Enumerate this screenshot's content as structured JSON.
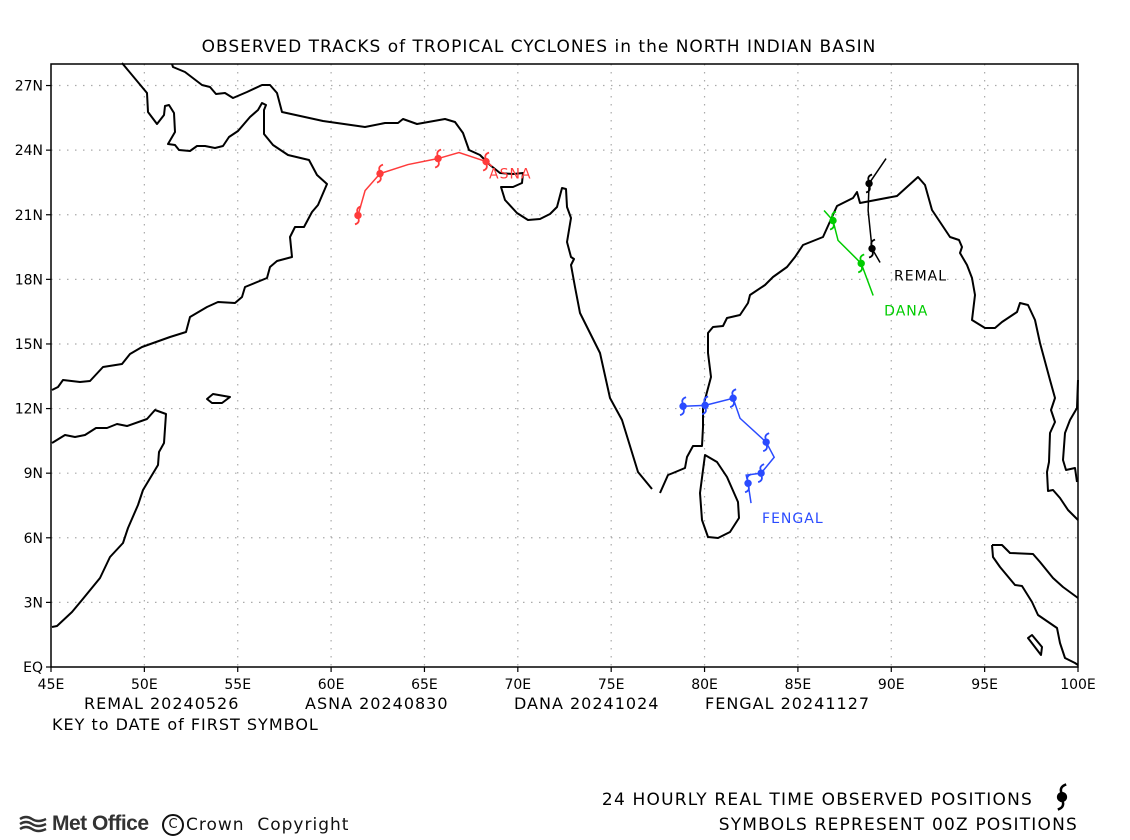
{
  "title": "OBSERVED TRACKS of TROPICAL CYCLONES in the NORTH INDIAN BASIN",
  "chart_data": {
    "type": "map-tracks",
    "lon_range": [
      45,
      100
    ],
    "lat_range": [
      0,
      28
    ],
    "lon_ticks": [
      "45E",
      "50E",
      "55E",
      "60E",
      "65E",
      "70E",
      "75E",
      "80E",
      "85E",
      "90E",
      "95E",
      "100E"
    ],
    "lat_ticks": [
      "EQ",
      "3N",
      "6N",
      "9N",
      "12N",
      "15N",
      "18N",
      "21N",
      "24N",
      "27N"
    ],
    "grid": true,
    "tracks": [
      {
        "name": "REMAL",
        "color": "#000000",
        "first_date": "20240526",
        "points": [
          [
            89.72,
            23.61
          ],
          [
            88.81,
            22.45
          ],
          [
            88.76,
            21.2
          ],
          [
            88.97,
            19.43
          ],
          [
            89.4,
            18.78
          ]
        ],
        "symbols": [
          [
            88.81,
            22.45
          ],
          [
            88.97,
            19.43
          ]
        ]
      },
      {
        "name": "ASNA",
        "color": "#ff3b3b",
        "first_date": "20240830",
        "points": [
          [
            61.44,
            20.97
          ],
          [
            61.82,
            22.12
          ],
          [
            62.62,
            22.91
          ],
          [
            64.12,
            23.33
          ],
          [
            65.73,
            23.61
          ],
          [
            66.85,
            23.89
          ],
          [
            68.3,
            23.47
          ],
          [
            68.62,
            23.25
          ]
        ],
        "symbols": [
          [
            61.44,
            20.97
          ],
          [
            62.62,
            22.91
          ],
          [
            65.73,
            23.61
          ],
          [
            68.3,
            23.47
          ]
        ]
      },
      {
        "name": "DANA",
        "color": "#00cc00",
        "first_date": "20241024",
        "points": [
          [
            86.4,
            21.2
          ],
          [
            86.88,
            20.73
          ],
          [
            87.15,
            19.81
          ],
          [
            88.39,
            18.74
          ],
          [
            89.03,
            17.25
          ]
        ],
        "symbols": [
          [
            86.88,
            20.73
          ],
          [
            88.39,
            18.74
          ]
        ]
      },
      {
        "name": "FENGAL",
        "color": "#2a4bff",
        "first_date": "20241127",
        "points": [
          [
            82.49,
            7.61
          ],
          [
            82.33,
            8.53
          ],
          [
            82.23,
            8.91
          ],
          [
            83.03,
            9.0
          ],
          [
            83.73,
            9.74
          ],
          [
            83.3,
            10.44
          ],
          [
            81.9,
            11.55
          ],
          [
            81.53,
            12.48
          ],
          [
            80.03,
            12.15
          ],
          [
            78.85,
            12.11
          ]
        ],
        "symbols": [
          [
            82.33,
            8.53
          ],
          [
            83.03,
            9.0
          ],
          [
            83.3,
            10.44
          ],
          [
            81.53,
            12.48
          ],
          [
            80.03,
            12.15
          ],
          [
            78.85,
            12.11
          ]
        ]
      }
    ]
  },
  "key": {
    "entries": [
      "REMAL 20240526",
      "ASNA 20240830",
      "DANA 20241024",
      "FENGAL 20241127"
    ],
    "caption": "KEY to DATE of FIRST SYMBOL"
  },
  "footer": {
    "line1": "24 HOURLY REAL TIME OBSERVED POSITIONS",
    "line2": "SYMBOLS REPRESENT 00Z POSITIONS",
    "logo": "Met Office",
    "copyright_symbol": "C",
    "copyright": "Crown  Copyright"
  }
}
